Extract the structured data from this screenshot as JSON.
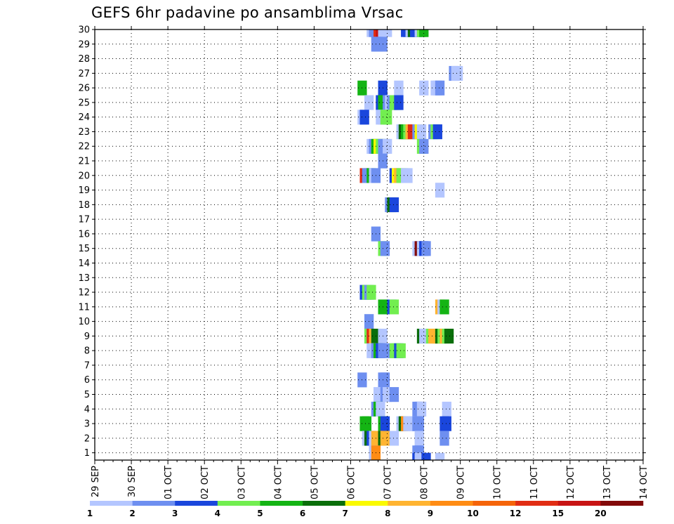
{
  "chart_data": {
    "type": "heatmap",
    "title": "GEFS 6hr padavine po ansamblima Vrsac",
    "y_ticks": [
      "1",
      "2",
      "3",
      "4",
      "5",
      "6",
      "7",
      "8",
      "9",
      "10",
      "11",
      "12",
      "13",
      "14",
      "15",
      "16",
      "17",
      "18",
      "19",
      "20",
      "21",
      "22",
      "23",
      "24",
      "25",
      "26",
      "27",
      "28",
      "29",
      "30"
    ],
    "x_ticks": [
      "29 SEP",
      "30 SEP",
      "01 OCT",
      "02 OCT",
      "03 OCT",
      "04 OCT",
      "05 OCT",
      "06 OCT",
      "07 OCT",
      "08 OCT",
      "09 OCT",
      "10 OCT",
      "11 OCT",
      "12 OCT",
      "13 OCT",
      "14 OCT"
    ],
    "x_unit": "6-hour steps from 29 SEP 00Z (4 per day)",
    "grid": true,
    "legend": {
      "placement": "bottom",
      "labels": [
        "1",
        "2",
        "3",
        "4",
        "5",
        "6",
        "7",
        "8",
        "9",
        "10",
        "12",
        "15",
        "20"
      ],
      "colors": [
        "#b4c6ff",
        "#6e8ff0",
        "#1a46dc",
        "#72ee50",
        "#14b414",
        "#0a6e0a",
        "#fafa00",
        "#ffb431",
        "#ff8c14",
        "#f5640a",
        "#e12d14",
        "#c81414",
        "#820a0a"
      ]
    },
    "cells": [
      [
        30,
        29.75,
        1
      ],
      [
        30,
        30,
        2
      ],
      [
        30,
        30.25,
        2
      ],
      [
        30,
        30.5,
        11
      ],
      [
        30,
        30.75,
        12
      ],
      [
        30,
        31,
        1
      ],
      [
        30,
        31.5,
        1
      ],
      [
        30,
        33.5,
        3
      ],
      [
        30,
        33.75,
        3
      ],
      [
        30,
        34,
        1
      ],
      [
        30,
        34.25,
        6
      ],
      [
        30,
        34.5,
        3
      ],
      [
        30,
        34.75,
        3
      ],
      [
        30,
        35,
        1
      ],
      [
        30,
        35.25,
        4
      ],
      [
        30,
        35.5,
        5
      ],
      [
        29,
        30.25,
        2
      ],
      [
        29,
        30.5,
        2
      ],
      [
        29,
        31,
        2
      ],
      [
        27,
        38.75,
        2
      ],
      [
        27,
        39,
        1
      ],
      [
        27,
        39.25,
        1
      ],
      [
        26,
        28.75,
        5
      ],
      [
        26,
        31,
        3
      ],
      [
        26,
        32.75,
        1
      ],
      [
        26,
        35.5,
        1
      ],
      [
        26,
        36.75,
        1
      ],
      [
        26,
        37,
        1
      ],
      [
        26,
        37.25,
        2
      ],
      [
        25,
        29.5,
        1
      ],
      [
        25,
        30.75,
        3
      ],
      [
        25,
        31,
        5
      ],
      [
        25,
        31.5,
        2
      ],
      [
        25,
        31.75,
        1
      ],
      [
        25,
        32,
        2
      ],
      [
        25,
        32.25,
        4
      ],
      [
        25,
        32.5,
        4
      ],
      [
        25,
        32.75,
        3
      ],
      [
        24,
        28.75,
        1
      ],
      [
        24,
        29,
        3
      ],
      [
        24,
        30.75,
        1
      ],
      [
        24,
        31,
        1
      ],
      [
        24,
        31.25,
        4
      ],
      [
        24,
        31.5,
        4
      ],
      [
        23,
        33,
        1
      ],
      [
        23,
        33.25,
        6
      ],
      [
        23,
        33.5,
        5
      ],
      [
        23,
        33.75,
        4
      ],
      [
        23,
        34,
        8
      ],
      [
        23,
        34.25,
        11
      ],
      [
        23,
        34.75,
        2
      ],
      [
        23,
        35,
        7
      ],
      [
        23,
        35.25,
        1
      ],
      [
        23,
        36.5,
        2
      ],
      [
        23,
        36.75,
        4
      ],
      [
        23,
        37,
        3
      ],
      [
        22,
        29.75,
        1
      ],
      [
        22,
        30,
        2
      ],
      [
        22,
        30.25,
        5
      ],
      [
        22,
        30.5,
        7
      ],
      [
        22,
        30.75,
        4
      ],
      [
        22,
        31,
        2
      ],
      [
        22,
        31.25,
        2
      ],
      [
        22,
        31.5,
        1
      ],
      [
        22,
        35.25,
        4
      ],
      [
        22,
        35.5,
        2
      ],
      [
        21,
        31,
        2
      ],
      [
        20,
        29,
        11
      ],
      [
        20,
        29.25,
        2
      ],
      [
        20,
        29.5,
        2
      ],
      [
        20,
        29.75,
        5
      ],
      [
        20,
        30,
        1
      ],
      [
        20,
        30.25,
        2
      ],
      [
        20,
        32.25,
        3
      ],
      [
        20,
        32.5,
        7
      ],
      [
        20,
        32.75,
        8
      ],
      [
        20,
        33,
        4
      ],
      [
        20,
        33.25,
        4
      ],
      [
        20,
        33.5,
        1
      ],
      [
        20,
        33.75,
        1
      ],
      [
        19,
        37.25,
        1
      ],
      [
        18,
        31.75,
        2
      ],
      [
        18,
        32,
        6
      ],
      [
        18,
        32.25,
        3
      ],
      [
        16,
        30.25,
        2
      ],
      [
        15,
        31,
        4
      ],
      [
        15,
        31.25,
        2
      ],
      [
        15,
        34.75,
        1
      ],
      [
        15,
        35,
        13
      ],
      [
        15,
        35.25,
        1
      ],
      [
        15,
        35.5,
        3
      ],
      [
        15,
        35.75,
        2
      ],
      [
        12,
        29,
        3
      ],
      [
        12,
        29.25,
        4
      ],
      [
        12,
        29.5,
        2
      ],
      [
        12,
        29.75,
        4
      ],
      [
        11,
        31,
        5
      ],
      [
        11,
        32,
        3
      ],
      [
        11,
        32.25,
        4
      ],
      [
        11,
        37.25,
        8
      ],
      [
        11,
        37.5,
        1
      ],
      [
        11,
        37.75,
        5
      ],
      [
        10,
        29.5,
        2
      ],
      [
        9,
        29.5,
        4
      ],
      [
        9,
        29.75,
        11
      ],
      [
        9,
        30,
        8
      ],
      [
        9,
        30.25,
        6
      ],
      [
        9,
        31,
        1
      ],
      [
        9,
        35.25,
        6
      ],
      [
        9,
        35.5,
        1
      ],
      [
        9,
        36,
        1
      ],
      [
        9,
        36.25,
        4
      ],
      [
        9,
        36.5,
        8
      ],
      [
        9,
        36.75,
        8
      ],
      [
        9,
        37,
        8
      ],
      [
        9,
        37.25,
        6
      ],
      [
        9,
        37.5,
        4
      ],
      [
        9,
        37.75,
        8
      ],
      [
        9,
        38,
        4
      ],
      [
        9,
        38.25,
        6
      ],
      [
        8,
        29.75,
        1
      ],
      [
        8,
        30,
        1
      ],
      [
        8,
        30.25,
        2
      ],
      [
        8,
        30.5,
        5
      ],
      [
        8,
        30.75,
        3
      ],
      [
        8,
        31,
        2
      ],
      [
        8,
        32,
        2
      ],
      [
        8,
        32.25,
        4
      ],
      [
        8,
        32.5,
        4
      ],
      [
        8,
        32.75,
        3
      ],
      [
        8,
        33,
        4
      ],
      [
        6,
        28.75,
        2
      ],
      [
        6,
        31,
        2
      ],
      [
        6,
        31.25,
        2
      ],
      [
        5,
        30.5,
        1
      ],
      [
        5,
        31,
        1
      ],
      [
        5,
        31.25,
        2
      ],
      [
        5,
        31.5,
        1
      ],
      [
        5,
        32.25,
        2
      ],
      [
        4,
        30.25,
        2
      ],
      [
        4,
        30.5,
        5
      ],
      [
        4,
        30.75,
        1
      ],
      [
        4,
        34.75,
        2
      ],
      [
        4,
        35,
        2
      ],
      [
        4,
        35.25,
        1
      ],
      [
        4,
        38,
        1
      ],
      [
        3,
        29,
        5
      ],
      [
        3,
        29.25,
        5
      ],
      [
        3,
        31,
        5
      ],
      [
        3,
        31.25,
        3
      ],
      [
        3,
        33,
        1
      ],
      [
        3,
        33.25,
        6
      ],
      [
        3,
        33.5,
        9
      ],
      [
        3,
        33.75,
        1
      ],
      [
        3,
        34,
        1
      ],
      [
        3,
        34.25,
        1
      ],
      [
        3,
        34.5,
        1
      ],
      [
        3,
        34.75,
        2
      ],
      [
        3,
        35,
        2
      ],
      [
        3,
        37.75,
        3
      ],
      [
        3,
        38,
        3
      ],
      [
        2,
        29.25,
        1
      ],
      [
        2,
        29.5,
        6
      ],
      [
        2,
        29.75,
        3
      ],
      [
        2,
        30,
        1
      ],
      [
        2,
        30.25,
        8
      ],
      [
        2,
        30.5,
        8
      ],
      [
        2,
        31,
        6
      ],
      [
        2,
        31.25,
        8
      ],
      [
        2,
        32.25,
        1
      ],
      [
        2,
        35,
        1
      ],
      [
        2,
        37.75,
        2
      ],
      [
        1,
        30,
        1
      ],
      [
        1,
        30.25,
        9
      ],
      [
        1,
        34.75,
        2
      ],
      [
        1,
        35,
        2
      ],
      [
        0.5,
        34.75,
        3
      ],
      [
        0.5,
        35,
        1
      ],
      [
        0.5,
        35.5,
        1
      ],
      [
        0.5,
        35.75,
        3
      ],
      [
        0.5,
        37.25,
        1
      ]
    ]
  }
}
